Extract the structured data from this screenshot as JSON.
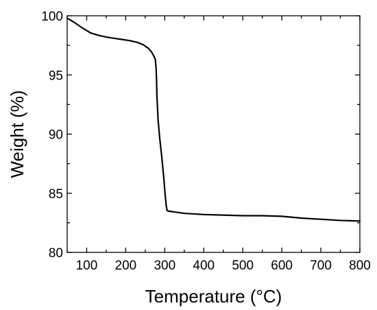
{
  "chart_data": {
    "type": "line",
    "title": "",
    "xlabel": "Temperature (°C)",
    "ylabel": "Weight (%)",
    "xlim": [
      50,
      800
    ],
    "ylim": [
      80,
      100
    ],
    "x_ticks": [
      100,
      200,
      300,
      400,
      500,
      600,
      700,
      800
    ],
    "y_ticks": [
      80,
      85,
      90,
      95,
      100
    ],
    "x_tick_labels": [
      "100",
      "200",
      "300",
      "400",
      "500",
      "600",
      "700",
      "800"
    ],
    "y_tick_labels": [
      "80",
      "85",
      "90",
      "95",
      "100"
    ],
    "grid": false,
    "legend": false,
    "line_color": "#000000",
    "series": [
      {
        "x": [
          50,
          70,
          90,
          110,
          130,
          150,
          170,
          190,
          210,
          230,
          245,
          258,
          266,
          272,
          276,
          278,
          279,
          280,
          283,
          287,
          292,
          297,
          301,
          304,
          306,
          308,
          350,
          400,
          450,
          500,
          550,
          600,
          650,
          700,
          750,
          800
        ],
        "y": [
          99.8,
          99.4,
          98.95,
          98.55,
          98.35,
          98.2,
          98.1,
          98.0,
          97.9,
          97.75,
          97.55,
          97.25,
          96.95,
          96.6,
          96.3,
          95.5,
          94.5,
          93.2,
          91.2,
          89.7,
          88.2,
          86.5,
          84.9,
          83.9,
          83.55,
          83.5,
          83.3,
          83.2,
          83.15,
          83.1,
          83.1,
          83.05,
          82.9,
          82.8,
          82.7,
          82.65
        ]
      }
    ]
  }
}
